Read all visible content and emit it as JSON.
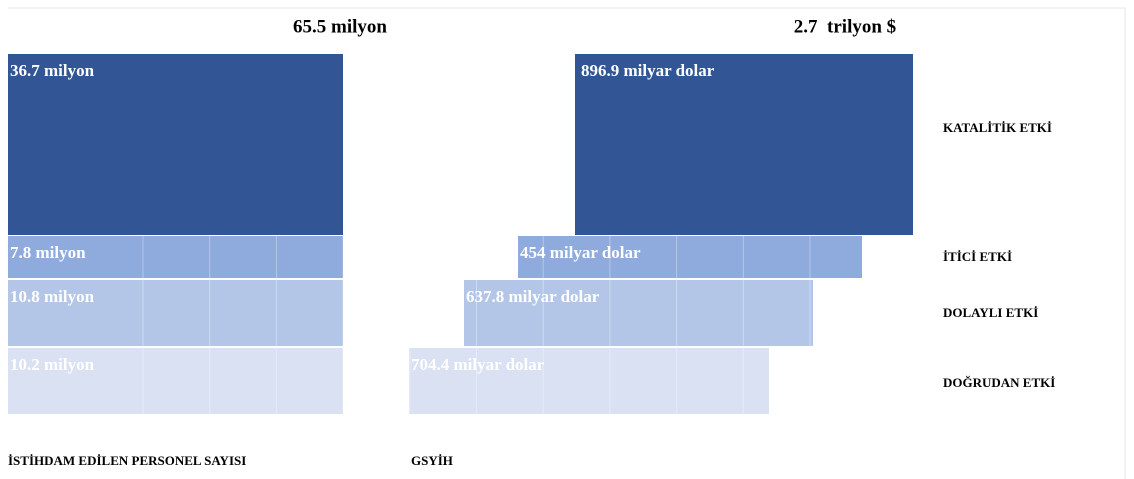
{
  "totals": {
    "employment": "65.5 milyon",
    "gdp": "2.7  trilyon $"
  },
  "rows": [
    {
      "label": "KATALİTİK ETKİ",
      "employment": "36.7 milyon",
      "gdp": "896.9 milyar dolar"
    },
    {
      "label": "İTİCİ ETKİ",
      "employment": "7.8 milyon",
      "gdp": "454 milyar dolar"
    },
    {
      "label": "DOLAYLI ETKİ",
      "employment": "10.8 milyon",
      "gdp": "637.8 milyar dolar"
    },
    {
      "label": "DOĞRUDAN ETKİ",
      "employment": "10.2 milyon",
      "gdp": "704.4 milyar dolar"
    }
  ],
  "captions": {
    "employment": "İSTİHDAM EDİLEN PERSONEL SAYISI",
    "gdp": "GSYİH"
  }
}
